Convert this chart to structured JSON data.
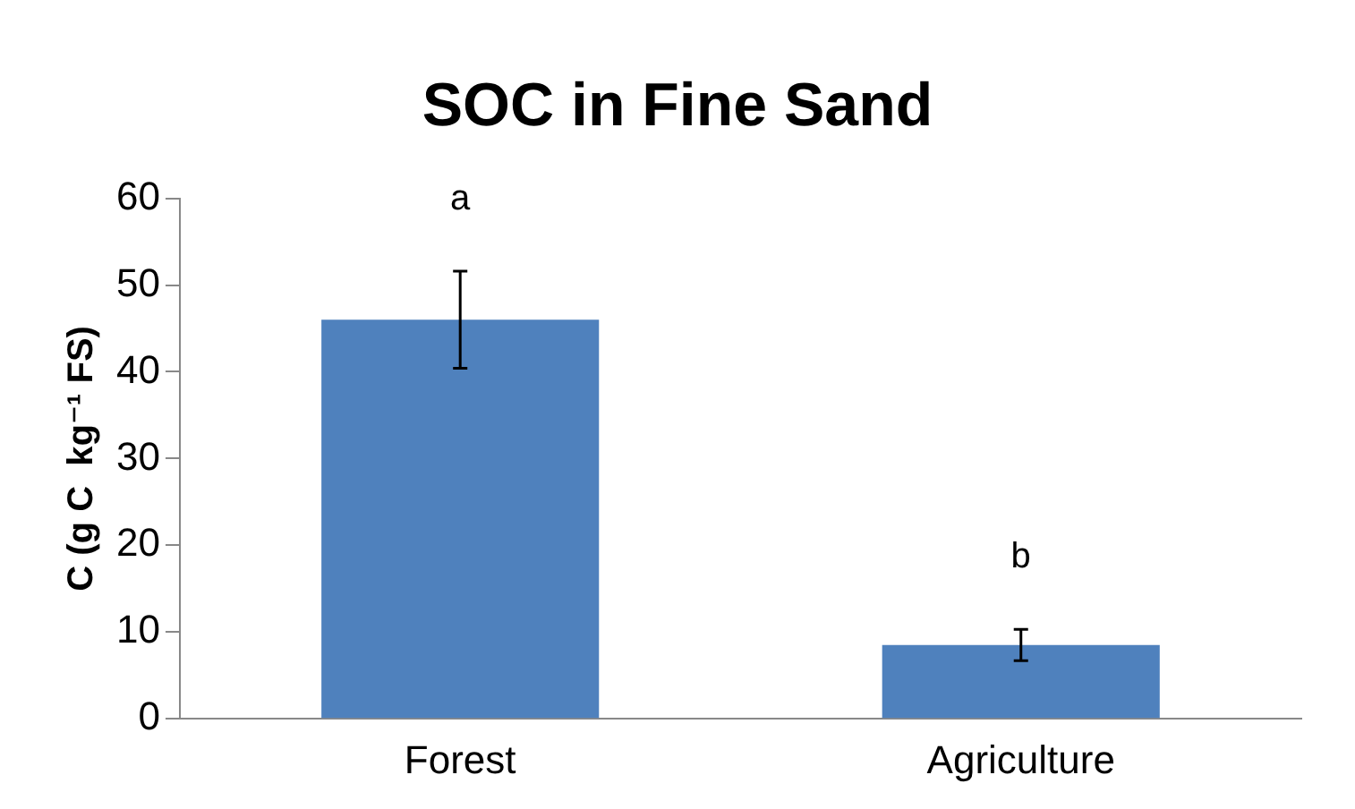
{
  "chart_data": {
    "type": "bar",
    "title": "SOC in Fine Sand",
    "ylabel": "C (g C  kg⁻¹ FS)",
    "categories": [
      "Forest",
      "Agriculture"
    ],
    "values": [
      46,
      8.5
    ],
    "errors": [
      5.6,
      1.8
    ],
    "color": "#4f81bd",
    "ylim": [
      0,
      60
    ],
    "yticks": [
      0,
      10,
      20,
      30,
      40,
      50,
      60
    ],
    "grid": false,
    "legend": false,
    "annotations": [
      "a",
      "b"
    ]
  }
}
